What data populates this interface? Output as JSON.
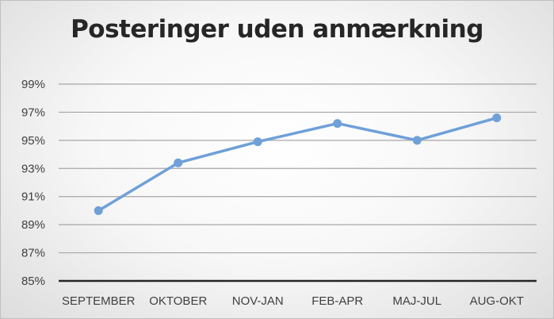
{
  "chart_data": {
    "type": "line",
    "title": "Posteringer uden anmærkning",
    "categories": [
      "SEPTEMBER",
      "OKTOBER",
      "NOV-JAN",
      "FEB-APR",
      "MAJ-JUL",
      "AUG-OKT"
    ],
    "series": [
      {
        "values": [
          90.0,
          93.4,
          94.9,
          96.2,
          95.0,
          96.6
        ]
      }
    ],
    "ylim": [
      85,
      99
    ],
    "y_ticks": [
      "85%",
      "87%",
      "89%",
      "91%",
      "93%",
      "95%",
      "97%",
      "99%"
    ],
    "y_tick_values": [
      85,
      87,
      89,
      91,
      93,
      95,
      97,
      99
    ],
    "xlabel": "",
    "ylabel": "",
    "grid": true,
    "legend": "none",
    "colors": {
      "line": "#6fa0d8",
      "marker": "#6fa0d8",
      "grid": "#a6a6a6",
      "axis": "#262626"
    }
  }
}
